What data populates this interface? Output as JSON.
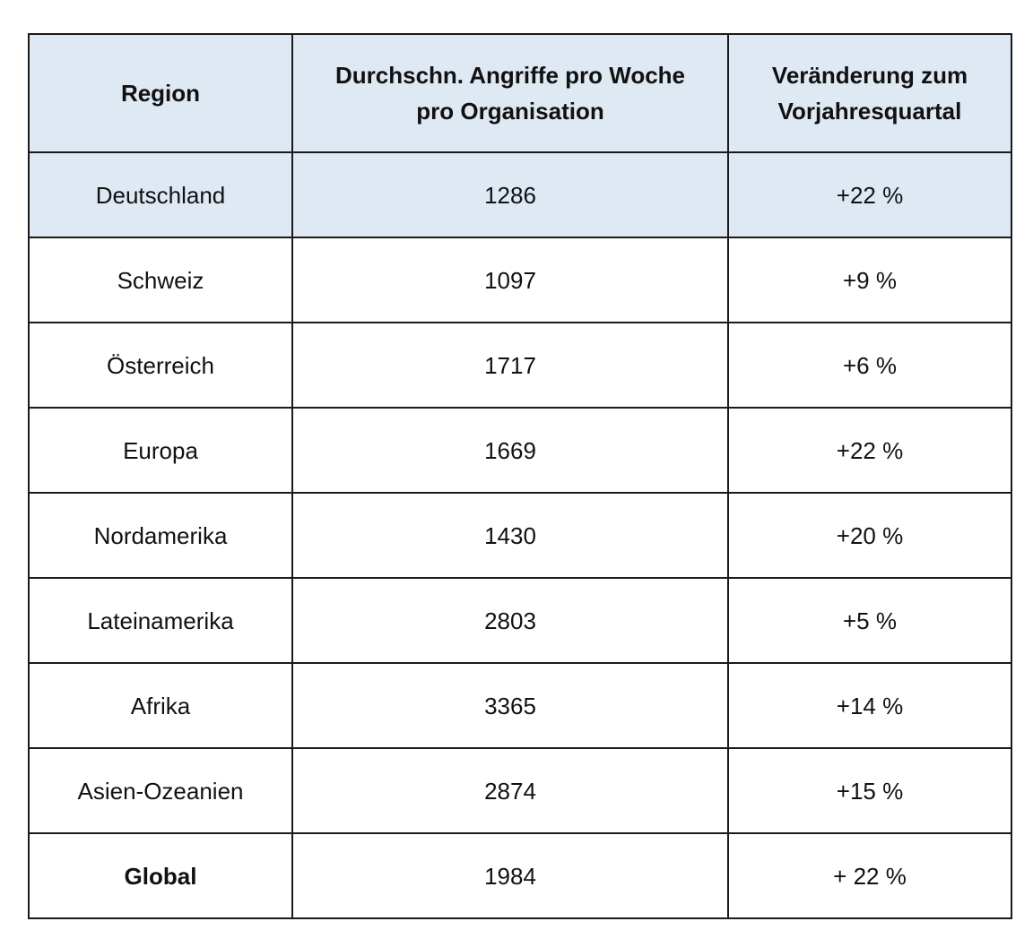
{
  "table": {
    "headers": [
      {
        "lines": [
          "Region"
        ]
      },
      {
        "lines": [
          "Durchschn. Angriffe pro Woche",
          "pro Organisation"
        ]
      },
      {
        "lines": [
          "Veränderung zum",
          "Vorjahresquartal"
        ]
      }
    ],
    "rows": [
      {
        "region": "Deutschland",
        "attacks": "1286",
        "change": "+22 %"
      },
      {
        "region": "Schweiz",
        "attacks": "1097",
        "change": "+9 %"
      },
      {
        "region": "Österreich",
        "attacks": "1717",
        "change": "+6 %"
      },
      {
        "region": "Europa",
        "attacks": "1669",
        "change": "+22 %"
      },
      {
        "region": "Nordamerika",
        "attacks": "1430",
        "change": "+20 %"
      },
      {
        "region": "Lateinamerika",
        "attacks": "2803",
        "change": "+5 %"
      },
      {
        "region": "Afrika",
        "attacks": "3365",
        "change": "+14 %"
      },
      {
        "region": "Asien-Ozeanien",
        "attacks": "2874",
        "change": "+15 %"
      },
      {
        "region": "Global",
        "attacks": "1984",
        "change": "+ 22 %"
      }
    ],
    "header_background": "#dfe9f4",
    "highlight_row_background": "#dfe9f4",
    "border_color": "#1a1a1a"
  }
}
